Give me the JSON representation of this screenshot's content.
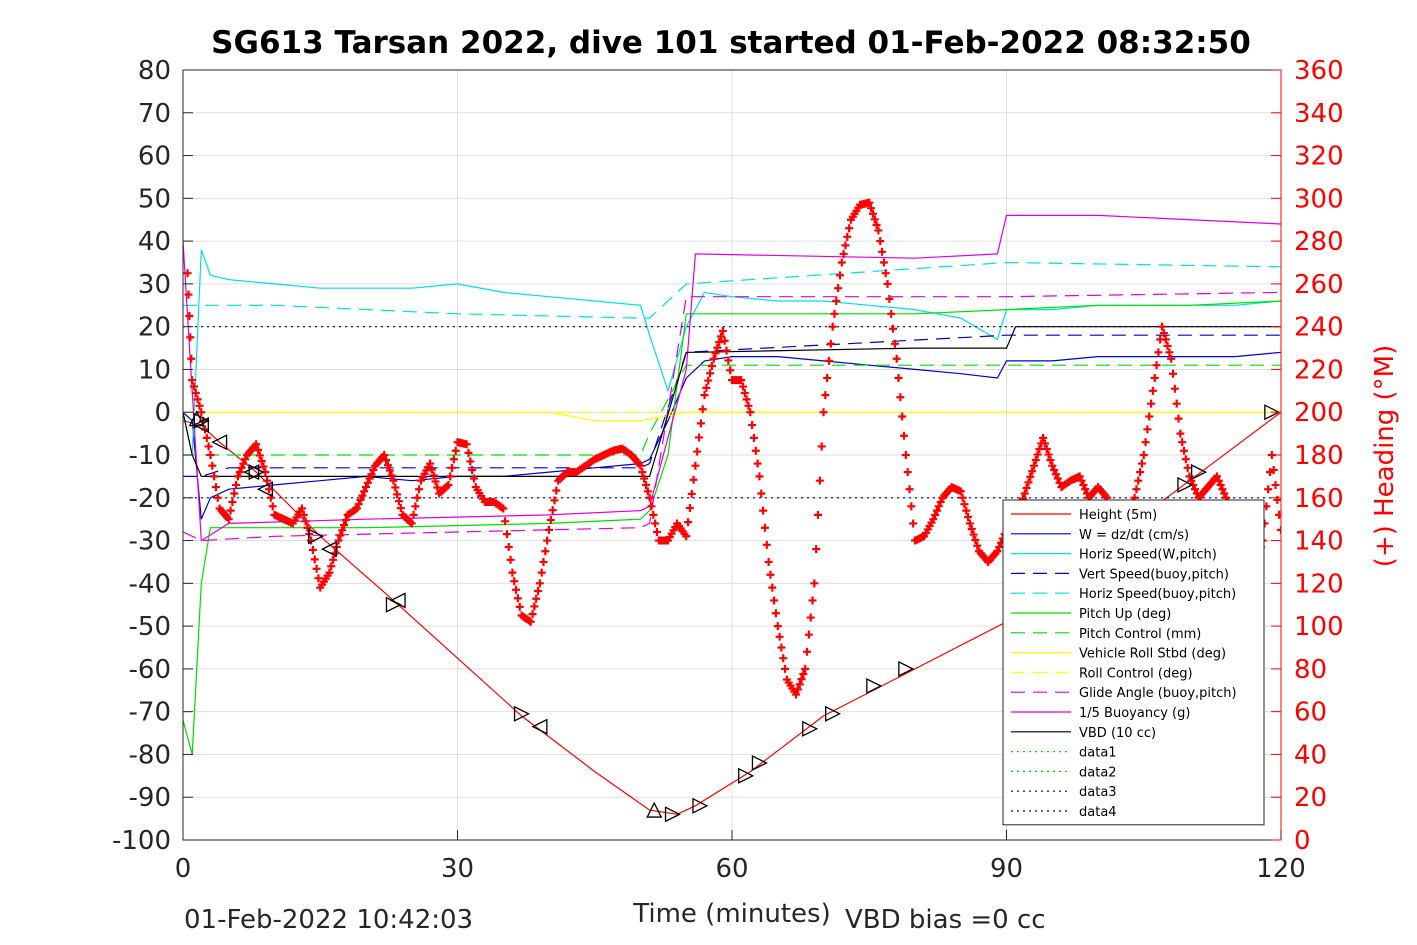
{
  "chart_data": {
    "type": "line",
    "title": "SG613 Tarsan 2022, dive 101 started 01-Feb-2022 08:32:50",
    "xlabel": "Time (minutes)",
    "ylabel_right": "(+) Heading (°M)",
    "xlim": [
      0,
      120
    ],
    "ylim": [
      -100,
      80
    ],
    "ylim_right": [
      0,
      360
    ],
    "x_ticks": [
      0,
      30,
      60,
      90,
      120
    ],
    "y_ticks": [
      -100,
      -90,
      -80,
      -70,
      -60,
      -50,
      -40,
      -30,
      -20,
      -10,
      0,
      10,
      20,
      30,
      40,
      50,
      60,
      70,
      80
    ],
    "y_ticks_right": [
      0,
      20,
      40,
      60,
      80,
      100,
      120,
      140,
      160,
      180,
      200,
      220,
      240,
      260,
      280,
      300,
      320,
      340,
      360
    ],
    "grid": true,
    "legend_position": "lower-right",
    "colors": {
      "right_axis": "#ff0000",
      "axis": "#262626",
      "grid": "#dfdfdf"
    },
    "footer_left": "01-Feb-2022 10:42:03",
    "footer_right": "VBD bias =0 cc",
    "series": [
      {
        "name": "Height (5m)",
        "color": "#ff0000",
        "style": "solid",
        "x": [
          0,
          2,
          4,
          8,
          15,
          23,
          37,
          45,
          51,
          54,
          56,
          62,
          70,
          80,
          90,
          100,
          110,
          120
        ],
        "y": [
          -2,
          -3,
          -7,
          -14,
          -29,
          -44,
          -71,
          -84,
          -93,
          -94,
          -92,
          -84,
          -71,
          -60,
          -49,
          -32,
          -16,
          0
        ]
      },
      {
        "name": "W = dz/dt (cm/s)",
        "color": "#0000cc",
        "style": "solid",
        "x": [
          0,
          1,
          2,
          3,
          5,
          10,
          15,
          20,
          25,
          30,
          35,
          40,
          45,
          50,
          51,
          53,
          55,
          57,
          60,
          65,
          70,
          75,
          80,
          85,
          89,
          90,
          95,
          100,
          105,
          110,
          115,
          120
        ],
        "y": [
          0,
          -2,
          -25,
          -20,
          -18,
          -17,
          -16,
          -15,
          -16,
          -15,
          -15,
          -14,
          -13,
          -12,
          -11,
          -2,
          8,
          12,
          13,
          13,
          12,
          11,
          10,
          9,
          8,
          12,
          12,
          13,
          13,
          13,
          13,
          14
        ]
      },
      {
        "name": "Horiz Speed(W,pitch)",
        "color": "#00e0e0",
        "style": "solid",
        "x": [
          0,
          1,
          2,
          3,
          5,
          10,
          15,
          20,
          25,
          30,
          35,
          40,
          45,
          50,
          51,
          53,
          55,
          57,
          60,
          65,
          70,
          75,
          80,
          85,
          89,
          90,
          95,
          100,
          105,
          110,
          115,
          120
        ],
        "y": [
          0,
          -10,
          38,
          32,
          31,
          30,
          29,
          29,
          29,
          30,
          28,
          27,
          26,
          25,
          18,
          5,
          20,
          28,
          27,
          26,
          26,
          25,
          24,
          22,
          17,
          24,
          24,
          25,
          25,
          25,
          25,
          26
        ]
      },
      {
        "name": "Vert Speed(buoy,pitch)",
        "color": "#0000cc",
        "style": "dashed",
        "x": [
          0,
          2,
          5,
          30,
          50,
          51,
          55,
          90,
          120
        ],
        "y": [
          -15,
          -15,
          -13,
          -13,
          -13,
          -12,
          14,
          18,
          18
        ]
      },
      {
        "name": "Horiz Speed(buoy,pitch)",
        "color": "#00e0e0",
        "style": "dashed",
        "x": [
          0,
          2,
          10,
          30,
          50,
          51,
          55,
          90,
          120
        ],
        "y": [
          25,
          25,
          25,
          23,
          22,
          22,
          30,
          35,
          34
        ]
      },
      {
        "name": "Pitch Up (deg)",
        "color": "#00dd00",
        "style": "solid",
        "x": [
          0,
          1,
          2,
          3,
          5,
          20,
          40,
          50,
          51,
          53,
          55,
          60,
          80,
          90,
          100,
          110,
          120
        ],
        "y": [
          -72,
          -80,
          -40,
          -27,
          -27,
          -27,
          -26,
          -25,
          -23,
          -10,
          23,
          23,
          23,
          24,
          25,
          25,
          26
        ]
      },
      {
        "name": "Pitch Control (mm)",
        "color": "#00dd00",
        "style": "dashed",
        "x": [
          0,
          2,
          50,
          51,
          55,
          90,
          120
        ],
        "y": [
          -10,
          -10,
          -10,
          -5,
          11,
          11,
          11
        ]
      },
      {
        "name": "Vehicle Roll Stbd (deg)",
        "color": "#ffff00",
        "style": "solid",
        "x": [
          0,
          5,
          20,
          30,
          40,
          45,
          50,
          55,
          60,
          70,
          80,
          90,
          100,
          110,
          120
        ],
        "y": [
          0,
          0,
          0,
          0,
          0,
          -2,
          -2,
          0,
          0,
          0,
          0,
          0,
          0,
          0,
          0
        ]
      },
      {
        "name": "Roll Control (deg)",
        "color": "#ffff00",
        "style": "dashed",
        "x": [
          0,
          5,
          20,
          30,
          40,
          50,
          55,
          60,
          70,
          80,
          90,
          100,
          110,
          120
        ],
        "y": [
          0,
          0,
          0,
          0,
          0,
          0,
          0,
          0,
          0,
          0,
          0,
          0,
          0,
          0
        ]
      },
      {
        "name": "Glide Angle (buoy,pitch)",
        "color": "#dd00dd",
        "style": "dashed",
        "x": [
          0,
          2,
          10,
          30,
          50,
          51,
          55,
          90,
          120
        ],
        "y": [
          -28,
          -30,
          -29,
          -28,
          -27,
          -26,
          27,
          27,
          28
        ]
      },
      {
        "name": "1/5 Buoyancy (g)",
        "color": "#dd00dd",
        "style": "solid",
        "x": [
          0,
          2,
          5,
          20,
          40,
          50,
          51,
          55,
          56,
          80,
          89,
          90,
          100,
          120
        ],
        "y": [
          40,
          -30,
          -26,
          -25,
          -24,
          -23,
          -22,
          10,
          37,
          36,
          37,
          46,
          46,
          44
        ]
      },
      {
        "name": "VBD (10 cc)",
        "color": "#000000",
        "style": "solid",
        "x": [
          0,
          1,
          2,
          50,
          51,
          55,
          56,
          80,
          90,
          91,
          120
        ],
        "y": [
          0,
          -10,
          -15,
          -15,
          -15,
          14,
          14,
          15,
          15,
          20,
          20
        ]
      },
      {
        "name": "data1",
        "color": "#00dd00",
        "style": "dotted",
        "x": [
          0,
          120
        ],
        "y": [
          null,
          null
        ]
      },
      {
        "name": "data2",
        "color": "#00dd00",
        "style": "dotted",
        "x": [
          0,
          120
        ],
        "y": [
          null,
          null
        ]
      },
      {
        "name": "data3",
        "color": "#000066",
        "style": "dotted",
        "x": [
          0,
          120
        ],
        "y": [
          -20,
          -20
        ]
      },
      {
        "name": "data4",
        "color": "#000066",
        "style": "dotted",
        "x": [
          0,
          120
        ],
        "y": [
          20,
          20
        ]
      }
    ],
    "heading": {
      "axis": "right",
      "color": "#ff0000",
      "marker": "+",
      "x": [
        0.5,
        1,
        2,
        3,
        4,
        5,
        6,
        7,
        8,
        9,
        10,
        11,
        12,
        13,
        14,
        15,
        16,
        17,
        18,
        19,
        20,
        21,
        22,
        23,
        24,
        25,
        26,
        27,
        28,
        29,
        30,
        31,
        32,
        33,
        34,
        35,
        36,
        37,
        38,
        39,
        40,
        41,
        42,
        43,
        44,
        45,
        46,
        47,
        48,
        49,
        50,
        51,
        52,
        53,
        54,
        55,
        56,
        57,
        58,
        59,
        60,
        61,
        62,
        63,
        64,
        65,
        66,
        67,
        68,
        69,
        70,
        71,
        72,
        73,
        74,
        75,
        76,
        77,
        78,
        79,
        80,
        81,
        82,
        83,
        84,
        85,
        86,
        87,
        88,
        89,
        90,
        91,
        92,
        93,
        94,
        95,
        96,
        97,
        98,
        99,
        100,
        101,
        102,
        103,
        104,
        105,
        106,
        107,
        108,
        109,
        110,
        111,
        112,
        113,
        114,
        115,
        116,
        117,
        118,
        119,
        120
      ],
      "y": [
        265,
        215,
        200,
        180,
        155,
        150,
        170,
        180,
        185,
        172,
        152,
        150,
        148,
        155,
        140,
        118,
        125,
        140,
        152,
        155,
        165,
        175,
        180,
        168,
        152,
        148,
        168,
        176,
        162,
        166,
        186,
        185,
        165,
        158,
        158,
        155,
        125,
        105,
        102,
        120,
        145,
        168,
        172,
        172,
        175,
        178,
        180,
        182,
        183,
        180,
        175,
        160,
        140,
        140,
        148,
        142,
        175,
        208,
        225,
        238,
        215,
        215,
        200,
        170,
        130,
        100,
        75,
        68,
        80,
        120,
        200,
        240,
        270,
        290,
        297,
        298,
        285,
        260,
        225,
        180,
        140,
        142,
        150,
        160,
        165,
        163,
        148,
        135,
        130,
        135,
        145,
        150,
        162,
        175,
        188,
        175,
        165,
        168,
        170,
        160,
        165,
        160,
        145,
        152,
        160,
        180,
        210,
        240,
        225,
        190,
        170,
        160,
        165,
        170,
        160,
        150,
        130,
        125,
        140,
        180,
        145
      ]
    },
    "markers_descending": {
      "label": "triangle-left",
      "x": [
        2,
        4,
        7.5,
        9,
        16,
        23.5,
        39
      ],
      "y": [
        -3,
        -7,
        -14,
        -18,
        -32,
        -44,
        -73.5
      ]
    },
    "markers_ascending": {
      "label": "triangle-right",
      "x": [
        2,
        8,
        14.5,
        23,
        37,
        53.5,
        56.5,
        61.5,
        63,
        68.5,
        71,
        75.5,
        79,
        109.5,
        111,
        119
      ],
      "y": [
        -2,
        -14,
        -29,
        -45,
        -70.5,
        -94,
        -92,
        -85,
        -82,
        -74,
        -70.5,
        -64,
        -60,
        -17,
        -14,
        0
      ]
    },
    "markers_up": {
      "label": "triangle-up",
      "x": [
        1.5,
        51.5
      ],
      "y": [
        -1.5,
        -93
      ]
    }
  }
}
